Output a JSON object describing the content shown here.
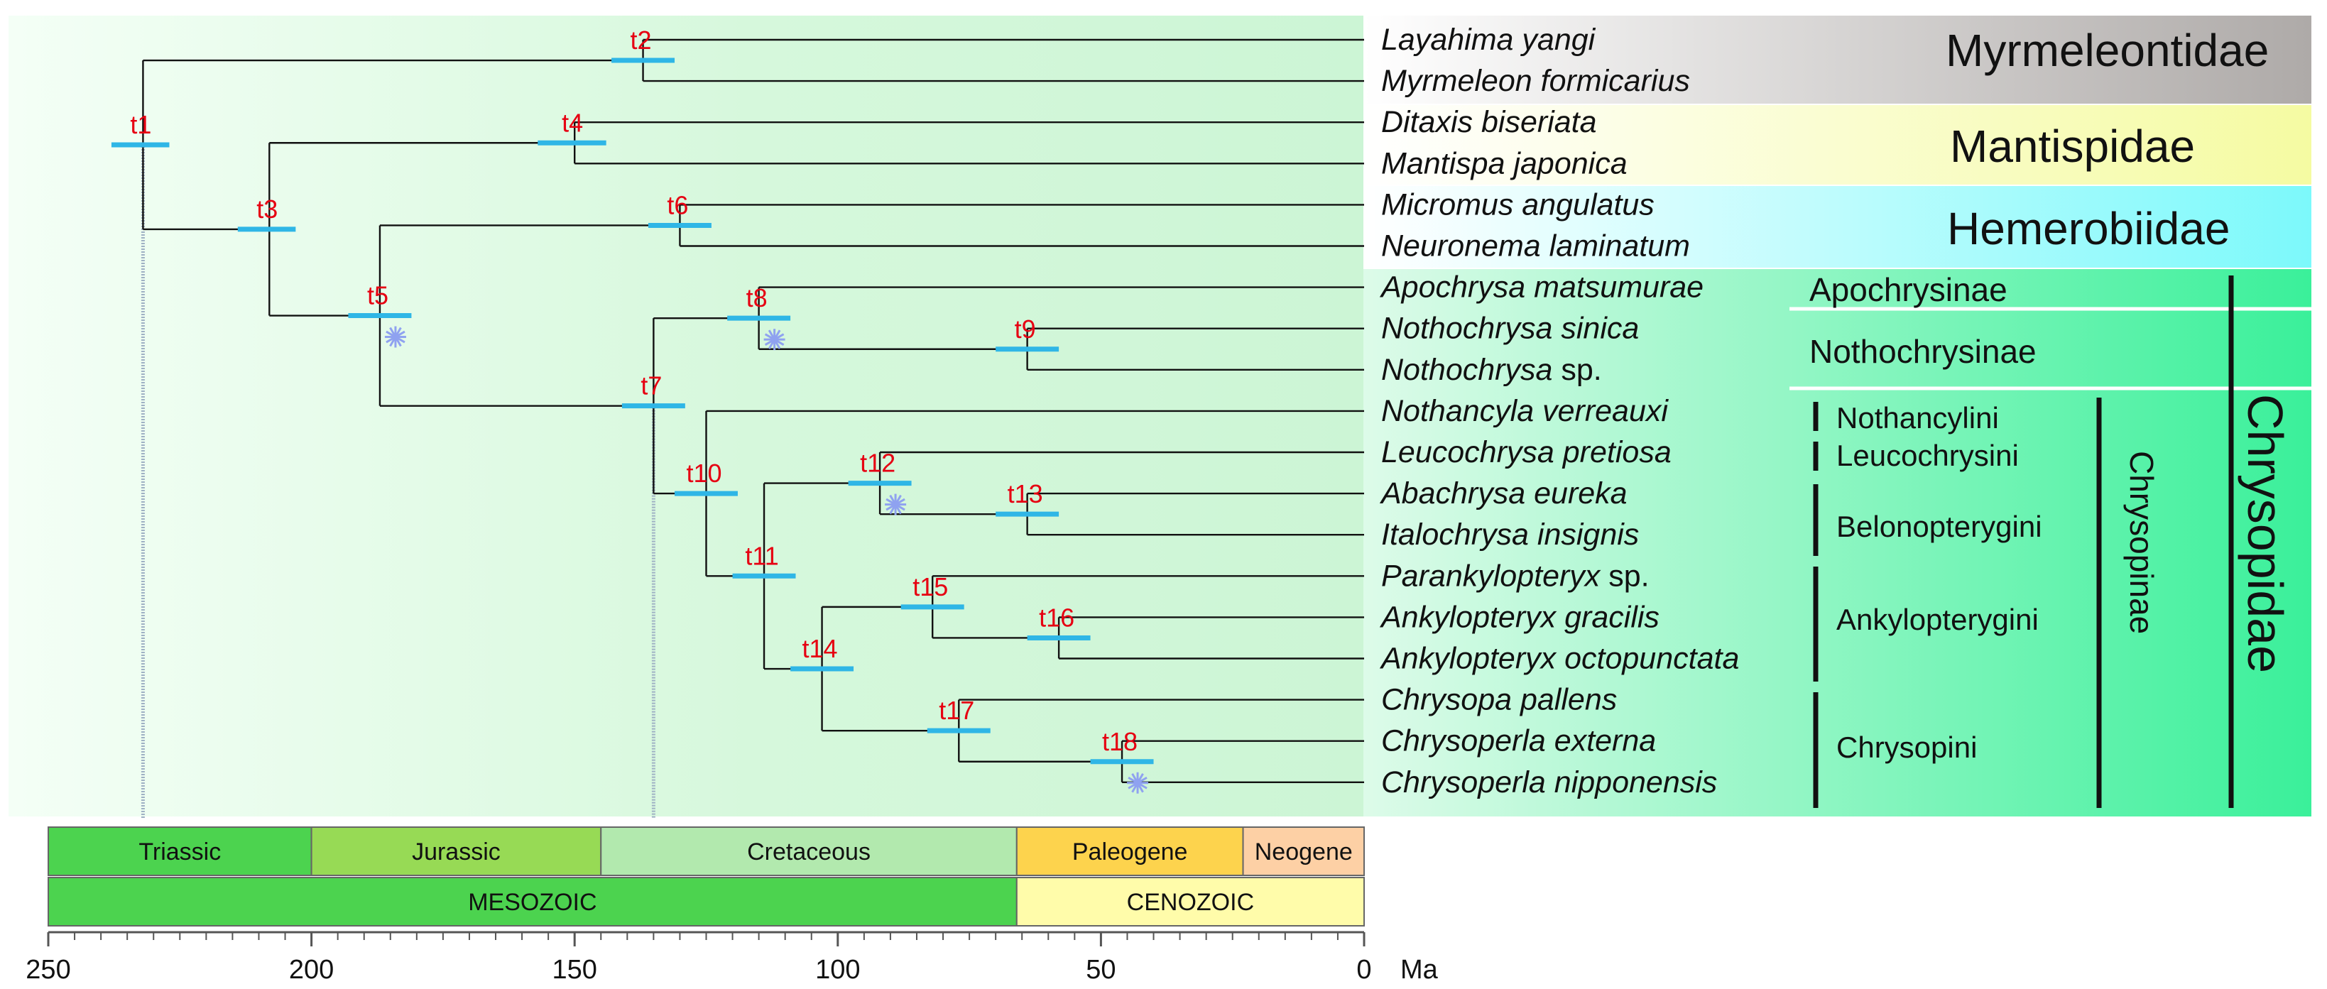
{
  "taxa": [
    {
      "genus": "Layahima",
      "epithet": " yangi"
    },
    {
      "genus": "Myrmeleon",
      "epithet": " formicarius"
    },
    {
      "genus": "Ditaxis",
      "epithet": " biseriata"
    },
    {
      "genus": "Mantispa",
      "epithet": " japonica"
    },
    {
      "genus": "Micromus",
      "epithet": " angulatus"
    },
    {
      "genus": "Neuronema",
      "epithet": " laminatum"
    },
    {
      "genus": "Apochrysa",
      "epithet": " matsumurae"
    },
    {
      "genus": "Nothochrysa",
      "epithet": " sinica"
    },
    {
      "genus": "Nothochrysa",
      "epithet": " sp."
    },
    {
      "genus": "Nothancyla",
      "epithet": " verreauxi"
    },
    {
      "genus": "Leucochrysa",
      "epithet": " pretiosa"
    },
    {
      "genus": "Abachrysa",
      "epithet": " eureka"
    },
    {
      "genus": "Italochrysa",
      "epithet": " insignis"
    },
    {
      "genus": "Parankylopteryx",
      "epithet": " sp."
    },
    {
      "genus": "Ankylopteryx",
      "epithet": " gracilis"
    },
    {
      "genus": "Ankylopteryx",
      "epithet": " octopunctata"
    },
    {
      "genus": "Chrysopa",
      "epithet": " pallens"
    },
    {
      "genus": "Chrysoperla",
      "epithet": " externa"
    },
    {
      "genus": "Chrysoperla",
      "epithet": " nipponensis"
    }
  ],
  "nodes": [
    {
      "id": "t1",
      "label": "t1",
      "age": 232,
      "low": 227,
      "high": 238
    },
    {
      "id": "t2",
      "label": "t2",
      "age": 137,
      "low": 131,
      "high": 143
    },
    {
      "id": "t3",
      "label": "t3",
      "age": 208,
      "low": 203,
      "high": 214
    },
    {
      "id": "t4",
      "label": "t4",
      "age": 150,
      "low": 144,
      "high": 157
    },
    {
      "id": "t5",
      "label": "t5",
      "age": 187,
      "low": 181,
      "high": 193
    },
    {
      "id": "t6",
      "label": "t6",
      "age": 130,
      "low": 124,
      "high": 136
    },
    {
      "id": "t7",
      "label": "t7",
      "age": 135,
      "low": 129,
      "high": 141
    },
    {
      "id": "t8",
      "label": "t8",
      "age": 115,
      "low": 109,
      "high": 121
    },
    {
      "id": "t9",
      "label": "t9",
      "age": 64,
      "low": 58,
      "high": 70
    },
    {
      "id": "t10",
      "label": "t10",
      "age": 125,
      "low": 119,
      "high": 131
    },
    {
      "id": "t11",
      "label": "t11",
      "age": 114,
      "low": 108,
      "high": 120
    },
    {
      "id": "t12",
      "label": "t12",
      "age": 92,
      "low": 86,
      "high": 98
    },
    {
      "id": "t13",
      "label": "t13",
      "age": 64,
      "low": 58,
      "high": 70
    },
    {
      "id": "t14",
      "label": "t14",
      "age": 103,
      "low": 97,
      "high": 109
    },
    {
      "id": "t15",
      "label": "t15",
      "age": 82,
      "low": 76,
      "high": 88
    },
    {
      "id": "t16",
      "label": "t16",
      "age": 58,
      "low": 52,
      "high": 64
    },
    {
      "id": "t17",
      "label": "t17",
      "age": 77,
      "low": 71,
      "high": 83
    },
    {
      "id": "t18",
      "label": "t18",
      "age": 46,
      "low": 40,
      "high": 52
    }
  ],
  "calibrations": [
    "t5",
    "t8",
    "t12",
    "t18"
  ],
  "families": {
    "myrmeleontidae": "Myrmeleontidae",
    "mantispidae": "Mantispidae",
    "hemerobiidae": "Hemerobiidae",
    "chrysopidae": "Chrysopidae"
  },
  "subfamilies": {
    "apochrysinae": "Apochrysinae",
    "nothochrysinae": "Nothochrysinae",
    "chrysopinae": "Chrysopinae"
  },
  "tribes": {
    "nothancylini": "Nothancylini",
    "leucochrysini": "Leucochrysini",
    "belonopterygini": "Belonopterygini",
    "ankylopterygini": "Ankylopterygini",
    "chrysopini": "Chrysopini"
  },
  "periods": [
    {
      "name": "Triassic",
      "start": 250,
      "end": 200,
      "color": "#4cd34f"
    },
    {
      "name": "Jurassic",
      "start": 200,
      "end": 145,
      "color": "#97da55"
    },
    {
      "name": "Cretaceous",
      "start": 145,
      "end": 66,
      "color": "#b2e9ae"
    },
    {
      "name": "Paleogene",
      "start": 66,
      "end": 23,
      "color": "#fdd34d"
    },
    {
      "name": "Neogene",
      "start": 23,
      "end": 0,
      "color": "#fdd0a5"
    }
  ],
  "eras": [
    {
      "name": "MESOZOIC",
      "start": 250,
      "end": 66,
      "color": "#4cd34f"
    },
    {
      "name": "CENOZOIC",
      "start": 66,
      "end": 0,
      "color": "#fffcaa"
    }
  ],
  "axis": {
    "ticks": [
      250,
      200,
      150,
      100,
      50,
      0
    ],
    "tick_labels": [
      "250",
      "200",
      "150",
      "100",
      "50",
      "0"
    ],
    "unit": "Ma",
    "minor_step": 5
  },
  "colors": {
    "hpd_bar": "#2fb6e6",
    "node_label": "#e60012",
    "calibration": "#8fa2f0",
    "myrmeleontidae_bg": "#b3b0ae",
    "mantispidae_bg": "#fbfcb8",
    "hemerobiidae_bg": "#7ffbfc",
    "chrysopidae_bg": "#4ff3a0"
  }
}
